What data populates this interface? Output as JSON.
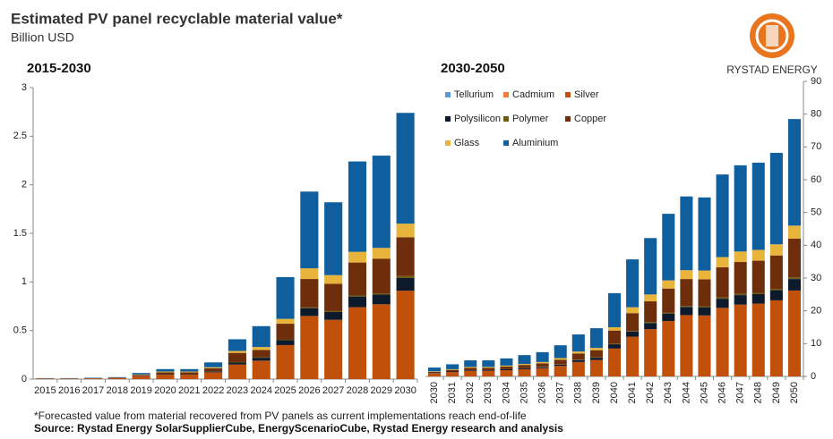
{
  "title": "Estimated PV panel recyclable material value*",
  "subtitle": "Billion USD",
  "logo": "RYSTAD ENERGY",
  "note": "*Forecasted value from material recovered from PV panels as current implementations reach end-of-life",
  "source": "Source: Rystad Energy SolarSupplierCube,  EnergyScenarioCube, Rystad Energy research and analysis",
  "chart_data": [
    {
      "type": "bar",
      "title": "2015-2030",
      "categories": [
        "2015",
        "2016",
        "2017",
        "2018",
        "2019",
        "2020",
        "2021",
        "2022",
        "2023",
        "2024",
        "2025",
        "2026",
        "2027",
        "2028",
        "2029",
        "2030"
      ],
      "ylim": [
        0,
        3
      ],
      "yticks": [
        0,
        0.5,
        1,
        1.5,
        2,
        2.5,
        3
      ],
      "series": [
        {
          "color": "#5b9bd5",
          "values": [
            0,
            0,
            0,
            0,
            0,
            0,
            0,
            0,
            0,
            0,
            0,
            0,
            0,
            0,
            0,
            0
          ]
        },
        {
          "color": "#ed7d31",
          "values": [
            0,
            0,
            0,
            0,
            0,
            0,
            0,
            0,
            0,
            0,
            0,
            0,
            0,
            0,
            0,
            0
          ]
        },
        {
          "color": "#c0500a",
          "values": [
            0.005,
            0.005,
            0.007,
            0.01,
            0.03,
            0.045,
            0.045,
            0.07,
            0.15,
            0.19,
            0.35,
            0.65,
            0.61,
            0.74,
            0.77,
            0.91
          ]
        },
        {
          "color": "#0c1a2c",
          "values": [
            0,
            0,
            0,
            0,
            0.003,
            0.005,
            0.005,
            0.01,
            0.02,
            0.03,
            0.05,
            0.08,
            0.08,
            0.11,
            0.1,
            0.13
          ]
        },
        {
          "color": "#6b5a12",
          "values": [
            0,
            0,
            0,
            0,
            0,
            0,
            0,
            0.002,
            0.005,
            0.005,
            0.005,
            0.01,
            0.01,
            0.01,
            0.01,
            0.02
          ]
        },
        {
          "color": "#6e2e0c",
          "values": [
            0.002,
            0.002,
            0.003,
            0.004,
            0.01,
            0.02,
            0.02,
            0.03,
            0.095,
            0.075,
            0.165,
            0.29,
            0.28,
            0.34,
            0.36,
            0.4
          ]
        },
        {
          "color": "#e8b43c",
          "values": [
            0,
            0,
            0.001,
            0.001,
            0.005,
            0.008,
            0.008,
            0.01,
            0.02,
            0.03,
            0.05,
            0.11,
            0.09,
            0.11,
            0.11,
            0.14
          ]
        },
        {
          "color": "#0f5f9e",
          "values": [
            0.003,
            0.003,
            0.004,
            0.005,
            0.015,
            0.025,
            0.025,
            0.05,
            0.12,
            0.215,
            0.43,
            0.79,
            0.75,
            0.93,
            0.95,
            1.14
          ]
        }
      ]
    },
    {
      "type": "bar",
      "title": "2030-2050",
      "categories": [
        "2030",
        "2031",
        "2032",
        "2033",
        "2034",
        "2035",
        "2036",
        "2037",
        "2038",
        "2039",
        "2040",
        "2041",
        "2042",
        "2043",
        "2044",
        "2045",
        "2046",
        "2047",
        "2048",
        "2049",
        "2050"
      ],
      "ylim": [
        0,
        90
      ],
      "yticks": [
        0,
        10,
        20,
        30,
        40,
        50,
        60,
        70,
        80,
        90
      ],
      "series": [
        {
          "name": "Tellurium",
          "color": "#5b9bd5",
          "values": [
            0,
            0,
            0,
            0,
            0,
            0,
            0,
            0,
            0,
            0,
            0,
            0,
            0,
            0,
            0,
            0,
            0,
            0,
            0,
            0,
            0
          ]
        },
        {
          "name": "Cadmium",
          "color": "#ed7d31",
          "values": [
            0,
            0,
            0,
            0,
            0,
            0,
            0,
            0,
            0,
            0,
            0,
            0,
            0,
            0,
            0,
            0,
            0,
            0,
            0,
            0,
            0
          ]
        },
        {
          "name": "Silver",
          "color": "#c0500a",
          "values": [
            0.9,
            1.3,
            1.7,
            1.7,
            1.9,
            2.2,
            2.5,
            3.2,
            4.4,
            5.0,
            8.5,
            12.1,
            14.4,
            16.9,
            18.7,
            18.6,
            20.9,
            21.9,
            22.2,
            23.2,
            26.2
          ]
        },
        {
          "name": "Polysilicon",
          "color": "#0c1a2c",
          "values": [
            0.1,
            0.2,
            0.2,
            0.2,
            0.3,
            0.3,
            0.3,
            0.4,
            0.6,
            0.7,
            1.3,
            1.6,
            1.9,
            2.2,
            2.5,
            2.5,
            2.8,
            2.9,
            2.9,
            3.1,
            3.5
          ]
        },
        {
          "name": "Polymer",
          "color": "#6b5a12",
          "values": [
            0.02,
            0,
            0,
            0,
            0,
            0,
            0.1,
            0.1,
            0.1,
            0.1,
            0.2,
            0.2,
            0.3,
            0.3,
            0.3,
            0.3,
            0.4,
            0.4,
            0.4,
            0.4,
            0.5
          ]
        },
        {
          "name": "Copper",
          "color": "#6e2e0c",
          "values": [
            0.4,
            0.5,
            0.7,
            0.7,
            0.8,
            1.0,
            1.1,
            1.4,
            1.9,
            2.2,
            4.0,
            5.4,
            6.3,
            7.4,
            8.2,
            8.2,
            9.2,
            9.7,
            9.8,
            10.2,
            11.8
          ]
        },
        {
          "name": "Glass",
          "color": "#e8b43c",
          "values": [
            0.14,
            0.2,
            0.3,
            0.3,
            0.3,
            0.3,
            0.4,
            0.5,
            0.6,
            0.7,
            1.0,
            1.8,
            2.1,
            2.5,
            2.7,
            2.7,
            3.1,
            3.2,
            3.3,
            3.4,
            4.0
          ]
        },
        {
          "name": "Aluminium",
          "color": "#0f5f9e",
          "values": [
            1.14,
            1.5,
            2.0,
            2.0,
            2.2,
            2.7,
            3.0,
            3.9,
            5.2,
            6.0,
            10.4,
            14.6,
            17.2,
            20.3,
            22.5,
            22.3,
            25.2,
            26.3,
            26.6,
            27.9,
            32.5
          ]
        }
      ]
    }
  ]
}
